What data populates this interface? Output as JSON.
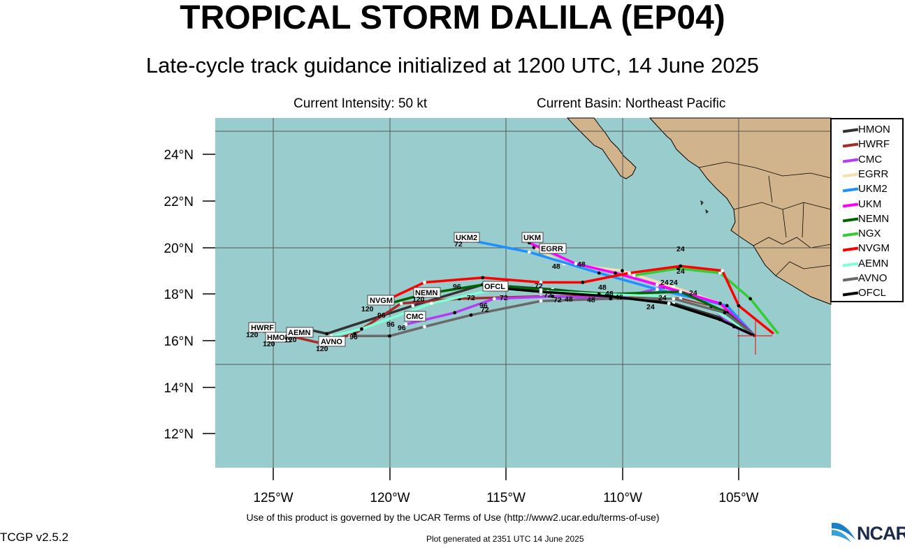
{
  "title": "TROPICAL STORM DALILA (EP04)",
  "subtitle": "Late-cycle track guidance initialized at 1200 UTC, 14 June 2025",
  "current_intensity": "Current Intensity: 50 kt",
  "current_basin": "Current Basin: Northeast Pacific",
  "y_ticks": [
    "24°N",
    "22°N",
    "20°N",
    "18°N",
    "16°N",
    "14°N",
    "12°N"
  ],
  "x_ticks": [
    "125°W",
    "120°W",
    "115°W",
    "110°W",
    "105°W"
  ],
  "legend": [
    {
      "name": "HMON",
      "color": "#333333"
    },
    {
      "name": "HWRF",
      "color": "#a52a2a"
    },
    {
      "name": "CMC",
      "color": "#b53cf5"
    },
    {
      "name": "EGRR",
      "color": "#f5deb3"
    },
    {
      "name": "UKM2",
      "color": "#1e90ff"
    },
    {
      "name": "UKM",
      "color": "#ff00ff"
    },
    {
      "name": "NEMN",
      "color": "#006400"
    },
    {
      "name": "NGX",
      "color": "#32cd32"
    },
    {
      "name": "NVGM",
      "color": "#ff0000"
    },
    {
      "name": "AEMN",
      "color": "#7fffd4"
    },
    {
      "name": "AVNO",
      "color": "#696969"
    },
    {
      "name": "OFCL",
      "color": "#000000"
    }
  ],
  "track_labels": {
    "HWRF": "HWRF",
    "HMON": "HMON",
    "AEMN": "AEMN",
    "AVNO": "AVNO",
    "NVGM": "NVGM",
    "NEMN": "NEMN",
    "CMC": "CMC",
    "OFCL": "OFCL",
    "UKM2": "UKM2",
    "UKM": "UKM",
    "EGRR": "EGRR"
  },
  "hour_labels": {
    "h120": "120",
    "h96": "96",
    "h72": "72",
    "h48": "48",
    "h24": "24"
  },
  "terms": "Use of this product is governed by the UCAR Terms of Use (http://www2.ucar.edu/terms-of-use)",
  "version": "TCGP v2.5.2",
  "generated": "Plot generated at 2351 UTC   14 June 2025",
  "logo": "NCAR",
  "colors": {
    "ocean": "#99cccc",
    "land": "#d2b48c",
    "grid": "#555555"
  },
  "chart_data": {
    "type": "map",
    "storm_position": {
      "lon": -104.3,
      "lat": 16.2
    },
    "tracks": [
      {
        "name": "HMON",
        "points": [
          [
            -104.3,
            16.2
          ],
          [
            -105.5,
            16.9
          ],
          [
            -107.8,
            17.6
          ],
          [
            -110,
            17.9
          ],
          [
            -113,
            18.2
          ],
          [
            -116,
            18.4
          ],
          [
            -119,
            17.5
          ],
          [
            -122.7,
            16.3
          ],
          [
            -123.6,
            16.5
          ],
          [
            -124.5,
            16.2
          ]
        ]
      },
      {
        "name": "HWRF",
        "points": [
          [
            -104.3,
            16.2
          ],
          [
            -105.3,
            17.2
          ],
          [
            -107.5,
            17.8
          ],
          [
            -110.5,
            17.9
          ],
          [
            -113.5,
            17.9
          ],
          [
            -117,
            17.8
          ],
          [
            -119.5,
            17.6
          ],
          [
            -121.5,
            16.3
          ],
          [
            -123,
            15.9
          ],
          [
            -124.7,
            16.3
          ],
          [
            -125.5,
            16.4
          ]
        ]
      },
      {
        "name": "CMC",
        "points": [
          [
            -104.3,
            16.2
          ],
          [
            -105.2,
            16.6
          ],
          [
            -106.5,
            17.7
          ],
          [
            -108.2,
            18.3
          ],
          [
            -110.3,
            17.8
          ],
          [
            -113,
            17.9
          ],
          [
            -115.5,
            17.8
          ],
          [
            -117.2,
            17.2
          ],
          [
            -119.3,
            16.7
          ]
        ]
      },
      {
        "name": "EGRR",
        "points": [
          [
            -104.3,
            16.2
          ],
          [
            -105.8,
            17.6
          ],
          [
            -107.8,
            18.3
          ],
          [
            -110,
            19.0
          ],
          [
            -112.5,
            19.3
          ],
          [
            -113.8,
            20
          ]
        ]
      },
      {
        "name": "UKM2",
        "points": [
          [
            -104.3,
            16.2
          ],
          [
            -105.5,
            17.5
          ],
          [
            -108.5,
            18.2
          ],
          [
            -111,
            18.9
          ],
          [
            -114,
            19.8
          ],
          [
            -116.5,
            20.3
          ]
        ]
      },
      {
        "name": "UKM",
        "points": [
          [
            -104.3,
            16.2
          ],
          [
            -105.8,
            17.6
          ],
          [
            -108.5,
            18.4
          ],
          [
            -110.3,
            18.9
          ],
          [
            -112,
            19.3
          ],
          [
            -114,
            20.2
          ]
        ]
      },
      {
        "name": "NEMN",
        "points": [
          [
            -104.3,
            16.2
          ],
          [
            -105.5,
            17.2
          ],
          [
            -107.5,
            18.1
          ],
          [
            -110.5,
            18.0
          ],
          [
            -113.5,
            18.2
          ],
          [
            -116,
            18.4
          ],
          [
            -118.5,
            18.0
          ],
          [
            -120,
            17.6
          ]
        ]
      },
      {
        "name": "NGX",
        "points": [
          [
            -103.3,
            16.3
          ],
          [
            -104.5,
            17.8
          ],
          [
            -105.8,
            18.9
          ],
          [
            -107.6,
            19.1
          ],
          [
            -109.5,
            18.8
          ]
        ]
      },
      {
        "name": "NVGM",
        "points": [
          [
            -103.5,
            16.3
          ],
          [
            -105,
            17.5
          ],
          [
            -105.7,
            19.0
          ],
          [
            -107.5,
            19.2
          ],
          [
            -109.7,
            18.9
          ],
          [
            -111.7,
            18.5
          ],
          [
            -113.5,
            18.5
          ],
          [
            -116,
            18.7
          ],
          [
            -118.5,
            18.5
          ],
          [
            -120,
            17.8
          ]
        ]
      },
      {
        "name": "AEMN",
        "points": [
          [
            -104.3,
            16.2
          ],
          [
            -106.2,
            17.4
          ],
          [
            -108.2,
            17.9
          ],
          [
            -111,
            18.0
          ],
          [
            -113.2,
            18.1
          ],
          [
            -115.5,
            18.2
          ],
          [
            -118.2,
            17.6
          ],
          [
            -121.2,
            16.5
          ],
          [
            -122.5,
            16.2
          ]
        ]
      },
      {
        "name": "AVNO",
        "points": [
          [
            -104.3,
            16.2
          ],
          [
            -105.6,
            17.2
          ],
          [
            -107.8,
            17.8
          ],
          [
            -110.5,
            17.8
          ],
          [
            -113.5,
            17.7
          ],
          [
            -116.5,
            17.1
          ],
          [
            -118.5,
            16.6
          ],
          [
            -120,
            16.2
          ],
          [
            -121.7,
            16.2
          ]
        ]
      },
      {
        "name": "OFCL",
        "points": [
          [
            -104.3,
            16.2
          ],
          [
            -105.8,
            16.9
          ],
          [
            -108.0,
            17.6
          ],
          [
            -110.5,
            17.9
          ],
          [
            -113.5,
            18.1
          ],
          [
            -115.8,
            18.3
          ]
        ]
      }
    ],
    "xlim": [
      -127.5,
      -101.2
    ],
    "ylim": [
      10.5,
      25.5
    ]
  }
}
